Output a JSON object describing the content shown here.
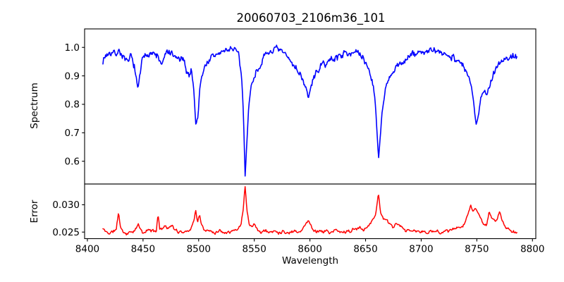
{
  "title": "20060703_2106m36_101",
  "xlabel": "Wavelength",
  "background_color": "#ffffff",
  "axis_color": "#000000",
  "xticks": [
    {
      "value": 8400,
      "label": "8400"
    },
    {
      "value": 8450,
      "label": "8450"
    },
    {
      "value": 8500,
      "label": "8500"
    },
    {
      "value": 8550,
      "label": "8550"
    },
    {
      "value": 8600,
      "label": "8600"
    },
    {
      "value": 8650,
      "label": "8650"
    },
    {
      "value": 8700,
      "label": "8700"
    },
    {
      "value": 8750,
      "label": "8750"
    },
    {
      "value": 8800,
      "label": "8800"
    }
  ],
  "xlim": [
    8397.5,
    8803.0
  ],
  "chart_data": [
    {
      "type": "line",
      "name": "spectrum",
      "ylabel": "Spectrum",
      "color": "#0000ff",
      "ylim": [
        0.52,
        1.065
      ],
      "yticks": [
        {
          "value": 0.6,
          "label": "0.6"
        },
        {
          "value": 0.7,
          "label": "0.7"
        },
        {
          "value": 0.8,
          "label": "0.8"
        },
        {
          "value": 0.9,
          "label": "0.9"
        },
        {
          "value": 1.0,
          "label": "1.0"
        }
      ],
      "x_range": [
        8414,
        8786
      ],
      "features": "noisy stellar spectrum, continuum ~0.97-1.0, absorption lines: 8445 (0.845), 8498 (0.725), 8542 (0.548), 8598 (0.825), 8662 (0.607), 8750 (0.725)",
      "envelope": [
        [
          8414,
          0.955
        ],
        [
          8417,
          0.975
        ],
        [
          8421,
          0.982
        ],
        [
          8425,
          0.978
        ],
        [
          8429,
          0.988
        ],
        [
          8433,
          0.96
        ],
        [
          8436,
          0.942
        ],
        [
          8439,
          0.97
        ],
        [
          8442,
          0.94
        ],
        [
          8444,
          0.885
        ],
        [
          8445.5,
          0.845
        ],
        [
          8447,
          0.9
        ],
        [
          8449,
          0.95
        ],
        [
          8452,
          0.97
        ],
        [
          8456,
          0.985
        ],
        [
          8460,
          0.975
        ],
        [
          8463,
          0.97
        ],
        [
          8466,
          0.94
        ],
        [
          8468,
          0.945
        ],
        [
          8471,
          0.985
        ],
        [
          8474,
          0.98
        ],
        [
          8478,
          0.965
        ],
        [
          8482,
          0.96
        ],
        [
          8486,
          0.955
        ],
        [
          8489,
          0.92
        ],
        [
          8491.5,
          0.9
        ],
        [
          8493.5,
          0.925
        ],
        [
          8495.5,
          0.86
        ],
        [
          8497.5,
          0.725
        ],
        [
          8499.5,
          0.76
        ],
        [
          8501,
          0.86
        ],
        [
          8503,
          0.905
        ],
        [
          8506,
          0.935
        ],
        [
          8510,
          0.96
        ],
        [
          8515,
          0.972
        ],
        [
          8520,
          0.982
        ],
        [
          8525,
          0.99
        ],
        [
          8529,
          0.998
        ],
        [
          8533,
          0.99
        ],
        [
          8536,
          0.97
        ],
        [
          8538.5,
          0.9
        ],
        [
          8540,
          0.79
        ],
        [
          8541.8,
          0.548
        ],
        [
          8543.5,
          0.68
        ],
        [
          8545,
          0.79
        ],
        [
          8547,
          0.86
        ],
        [
          8550,
          0.9
        ],
        [
          8554,
          0.93
        ],
        [
          8558,
          0.958
        ],
        [
          8562,
          0.978
        ],
        [
          8566,
          0.99
        ],
        [
          8570,
          0.992
        ],
        [
          8574,
          0.985
        ],
        [
          8578,
          0.975
        ],
        [
          8582,
          0.955
        ],
        [
          8586,
          0.935
        ],
        [
          8590,
          0.915
        ],
        [
          8594,
          0.885
        ],
        [
          8597,
          0.845
        ],
        [
          8598.7,
          0.825
        ],
        [
          8601,
          0.86
        ],
        [
          8604,
          0.9
        ],
        [
          8608,
          0.925
        ],
        [
          8612,
          0.94
        ],
        [
          8617,
          0.952
        ],
        [
          8622,
          0.962
        ],
        [
          8627,
          0.972
        ],
        [
          8632,
          0.98
        ],
        [
          8637,
          0.985
        ],
        [
          8642,
          0.98
        ],
        [
          8646,
          0.968
        ],
        [
          8650,
          0.948
        ],
        [
          8653,
          0.92
        ],
        [
          8656,
          0.885
        ],
        [
          8658.5,
          0.82
        ],
        [
          8660.3,
          0.7
        ],
        [
          8661.7,
          0.607
        ],
        [
          8663.2,
          0.69
        ],
        [
          8665,
          0.775
        ],
        [
          8668,
          0.855
        ],
        [
          8670,
          0.875
        ],
        [
          8674,
          0.908
        ],
        [
          8678,
          0.93
        ],
        [
          8683,
          0.948
        ],
        [
          8688,
          0.965
        ],
        [
          8693,
          0.975
        ],
        [
          8698,
          0.982
        ],
        [
          8703,
          0.985
        ],
        [
          8708,
          0.988
        ],
        [
          8713,
          0.985
        ],
        [
          8718,
          0.98
        ],
        [
          8723,
          0.975
        ],
        [
          8728,
          0.968
        ],
        [
          8733,
          0.955
        ],
        [
          8737,
          0.938
        ],
        [
          8741,
          0.91
        ],
        [
          8744,
          0.878
        ],
        [
          8747,
          0.81
        ],
        [
          8749.5,
          0.725
        ],
        [
          8751.5,
          0.77
        ],
        [
          8753.5,
          0.825
        ],
        [
          8756,
          0.85
        ],
        [
          8758.5,
          0.83
        ],
        [
          8761,
          0.862
        ],
        [
          8764,
          0.9
        ],
        [
          8767,
          0.928
        ],
        [
          8770,
          0.945
        ],
        [
          8773,
          0.952
        ],
        [
          8776,
          0.96
        ],
        [
          8779,
          0.965
        ],
        [
          8782,
          0.968
        ],
        [
          8786,
          0.972
        ]
      ],
      "noise": {
        "seed": 7,
        "amplitude": 0.022,
        "step": 0.6,
        "smooth": 0.35
      }
    },
    {
      "type": "line",
      "name": "error",
      "ylabel": "Error",
      "color": "#ff0000",
      "ylim": [
        0.0238,
        0.0338
      ],
      "yticks": [
        {
          "value": 0.025,
          "label": "0.025"
        },
        {
          "value": 0.03,
          "label": "0.030"
        }
      ],
      "x_range": [
        8414,
        8786
      ],
      "features": "error spectrum, baseline ~0.025, spikes at 8428 (0.0287), 8463 (0.0284), 8497 (0.0291), 8542 (0.0337), 8598 (0.0272), 8662 (0.0322), 8745-8772 cluster (~0.0285-0.0299)",
      "envelope": [
        [
          8414,
          0.0256
        ],
        [
          8417,
          0.025
        ],
        [
          8420,
          0.0248
        ],
        [
          8423,
          0.0251
        ],
        [
          8426,
          0.0255
        ],
        [
          8428,
          0.0287
        ],
        [
          8429.5,
          0.0262
        ],
        [
          8432,
          0.025
        ],
        [
          8435,
          0.0247
        ],
        [
          8438,
          0.0249
        ],
        [
          8441,
          0.0252
        ],
        [
          8444,
          0.0255
        ],
        [
          8445.5,
          0.0265
        ],
        [
          8447,
          0.0258
        ],
        [
          8448.5,
          0.0252
        ],
        [
          8450,
          0.0248
        ],
        [
          8453,
          0.0252
        ],
        [
          8456,
          0.0255
        ],
        [
          8459,
          0.0251
        ],
        [
          8462,
          0.0254
        ],
        [
          8463.5,
          0.0284
        ],
        [
          8465,
          0.0256
        ],
        [
          8468,
          0.0258
        ],
        [
          8470.5,
          0.0262
        ],
        [
          8473,
          0.0255
        ],
        [
          8475.5,
          0.0264
        ],
        [
          8478,
          0.0255
        ],
        [
          8481,
          0.025
        ],
        [
          8484,
          0.0252
        ],
        [
          8487,
          0.025
        ],
        [
          8490,
          0.0252
        ],
        [
          8493,
          0.0257
        ],
        [
          8495.5,
          0.0268
        ],
        [
          8497.3,
          0.0291
        ],
        [
          8499,
          0.0266
        ],
        [
          8500.8,
          0.0282
        ],
        [
          8502.5,
          0.0264
        ],
        [
          8505,
          0.0255
        ],
        [
          8508,
          0.0251
        ],
        [
          8511,
          0.0253
        ],
        [
          8514,
          0.0249
        ],
        [
          8517,
          0.0251
        ],
        [
          8520,
          0.0253
        ],
        [
          8523,
          0.025
        ],
        [
          8526,
          0.0252
        ],
        [
          8529,
          0.0251
        ],
        [
          8532,
          0.0253
        ],
        [
          8535,
          0.0255
        ],
        [
          8538,
          0.0264
        ],
        [
          8540,
          0.029
        ],
        [
          8541.7,
          0.0337
        ],
        [
          8543.5,
          0.0288
        ],
        [
          8545.5,
          0.0264
        ],
        [
          8548,
          0.0262
        ],
        [
          8549.5,
          0.0268
        ],
        [
          8551.5,
          0.0258
        ],
        [
          8554,
          0.0252
        ],
        [
          8557,
          0.025
        ],
        [
          8560,
          0.0253
        ],
        [
          8563,
          0.0249
        ],
        [
          8566,
          0.0251
        ],
        [
          8569,
          0.0253
        ],
        [
          8572,
          0.0249
        ],
        [
          8575,
          0.0252
        ],
        [
          8578,
          0.025
        ],
        [
          8581,
          0.0248
        ],
        [
          8584,
          0.0251
        ],
        [
          8587,
          0.0253
        ],
        [
          8590,
          0.025
        ],
        [
          8593,
          0.0255
        ],
        [
          8596,
          0.0263
        ],
        [
          8598.5,
          0.0272
        ],
        [
          8600.5,
          0.0263
        ],
        [
          8603,
          0.0255
        ],
        [
          8606,
          0.0251
        ],
        [
          8609,
          0.0253
        ],
        [
          8612,
          0.025
        ],
        [
          8615,
          0.0252
        ],
        [
          8618,
          0.0249
        ],
        [
          8621,
          0.0251
        ],
        [
          8624,
          0.0253
        ],
        [
          8627,
          0.025
        ],
        [
          8630,
          0.0249
        ],
        [
          8633,
          0.0252
        ],
        [
          8636,
          0.0251
        ],
        [
          8639,
          0.0254
        ],
        [
          8642,
          0.0256
        ],
        [
          8645,
          0.0258
        ],
        [
          8648,
          0.0255
        ],
        [
          8651,
          0.026
        ],
        [
          8654,
          0.0266
        ],
        [
          8656.5,
          0.0271
        ],
        [
          8659,
          0.0282
        ],
        [
          8661.6,
          0.0322
        ],
        [
          8663.5,
          0.0285
        ],
        [
          8666,
          0.0275
        ],
        [
          8669,
          0.0271
        ],
        [
          8672,
          0.0264
        ],
        [
          8675,
          0.0259
        ],
        [
          8677.5,
          0.0266
        ],
        [
          8680,
          0.0261
        ],
        [
          8683,
          0.0257
        ],
        [
          8686,
          0.0253
        ],
        [
          8690,
          0.0251
        ],
        [
          8694,
          0.0253
        ],
        [
          8698,
          0.025
        ],
        [
          8702,
          0.0251
        ],
        [
          8706,
          0.0249
        ],
        [
          8710,
          0.0251
        ],
        [
          8714,
          0.0252
        ],
        [
          8718,
          0.025
        ],
        [
          8722,
          0.0252
        ],
        [
          8726,
          0.0253
        ],
        [
          8730,
          0.0255
        ],
        [
          8734,
          0.0258
        ],
        [
          8737,
          0.0261
        ],
        [
          8740,
          0.0272
        ],
        [
          8742.5,
          0.0285
        ],
        [
          8744.5,
          0.0299
        ],
        [
          8746.5,
          0.0288
        ],
        [
          8748.5,
          0.0295
        ],
        [
          8751,
          0.0285
        ],
        [
          8753.5,
          0.0275
        ],
        [
          8756,
          0.0265
        ],
        [
          8758.5,
          0.0262
        ],
        [
          8761,
          0.0287
        ],
        [
          8763.5,
          0.0274
        ],
        [
          8766,
          0.0269
        ],
        [
          8768.5,
          0.0275
        ],
        [
          8770.5,
          0.0289
        ],
        [
          8772.5,
          0.0272
        ],
        [
          8775,
          0.0262
        ],
        [
          8777.5,
          0.0256
        ],
        [
          8780,
          0.0252
        ],
        [
          8783,
          0.025
        ],
        [
          8786,
          0.0247
        ]
      ],
      "noise": {
        "seed": 11,
        "amplitude": 0.0006,
        "step": 0.6,
        "smooth": 0.45
      }
    }
  ]
}
